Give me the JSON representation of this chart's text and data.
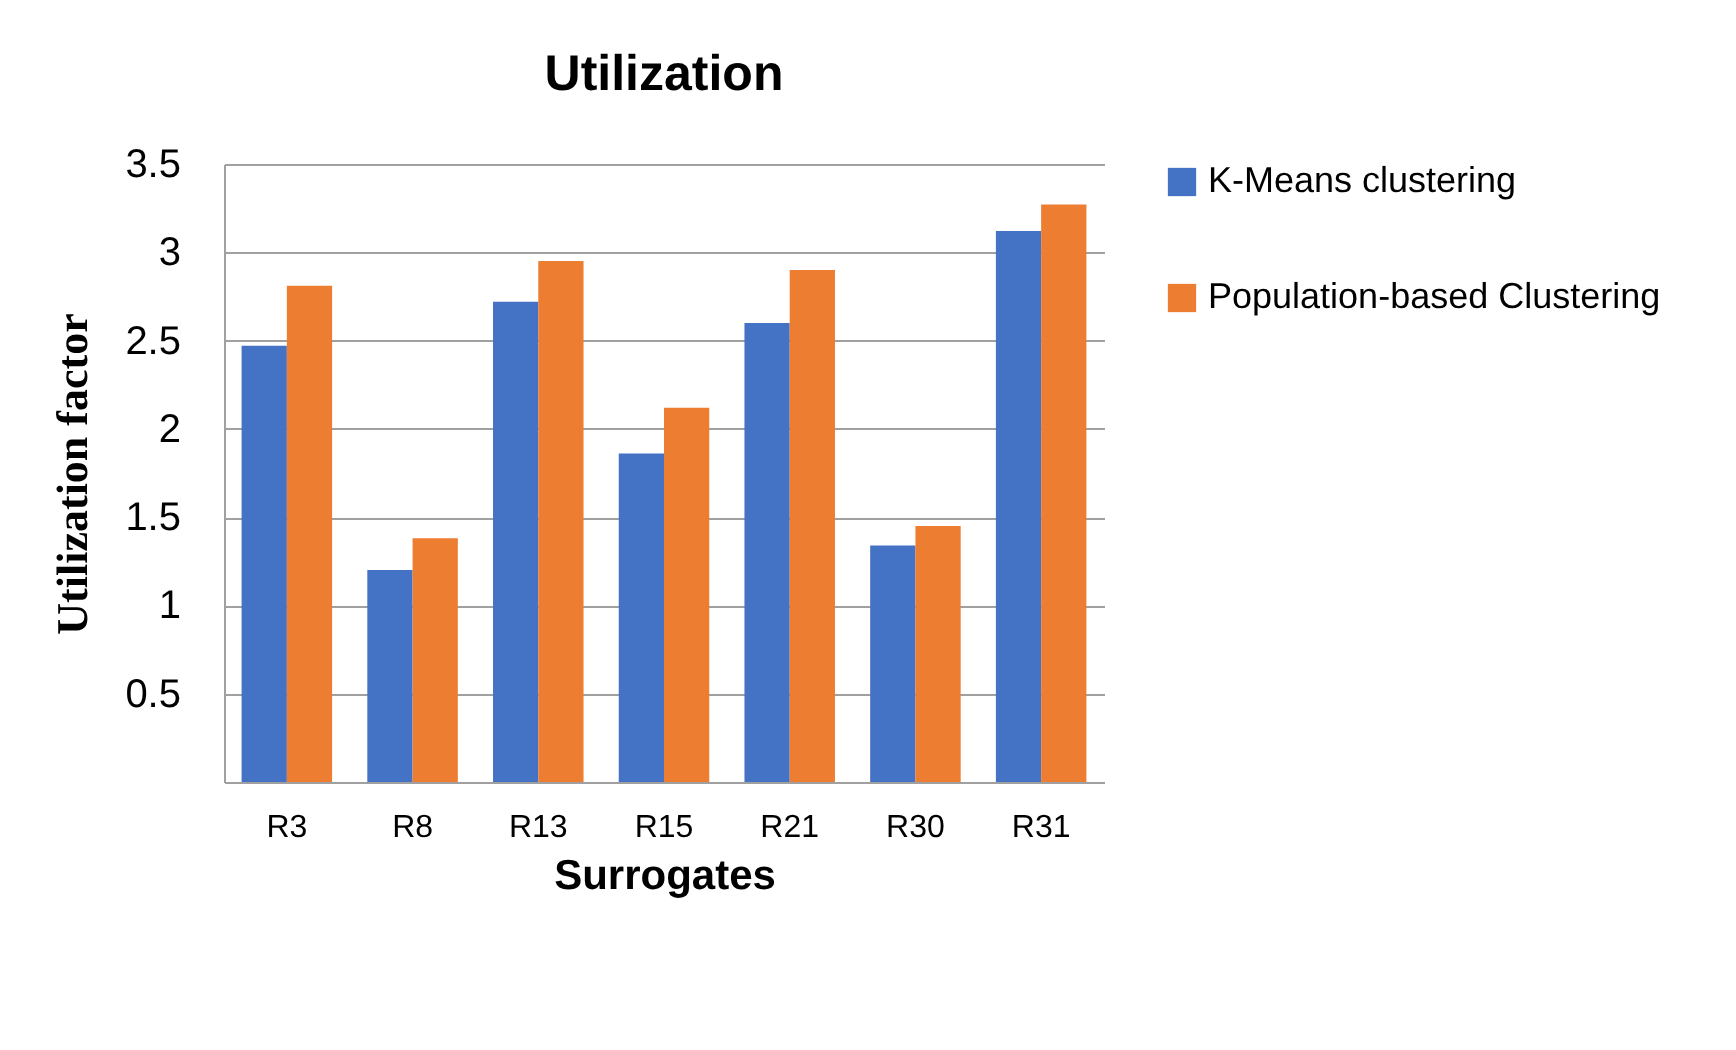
{
  "chart_data": {
    "type": "bar",
    "title": "Utilization",
    "xlabel": "Surrogates",
    "ylabel": "Utilization factor",
    "categories": [
      "R3",
      "R8",
      "R13",
      "R15",
      "R21",
      "R30",
      "R31"
    ],
    "series": [
      {
        "name": "K-Means clustering",
        "color": "#4472c4",
        "values": [
          2.47,
          1.2,
          2.72,
          1.86,
          2.6,
          1.34,
          3.12
        ]
      },
      {
        "name": "Population-based Clustering",
        "color": "#ed7d31",
        "values": [
          2.81,
          1.38,
          2.95,
          2.12,
          2.9,
          1.45,
          3.27
        ]
      }
    ],
    "ylim": [
      0,
      3.5
    ],
    "yticks": [
      {
        "value": 0,
        "label": null
      },
      0.5,
      1,
      1.5,
      2,
      2.5,
      3,
      3.5
    ],
    "grid": "y",
    "legend": "right"
  }
}
